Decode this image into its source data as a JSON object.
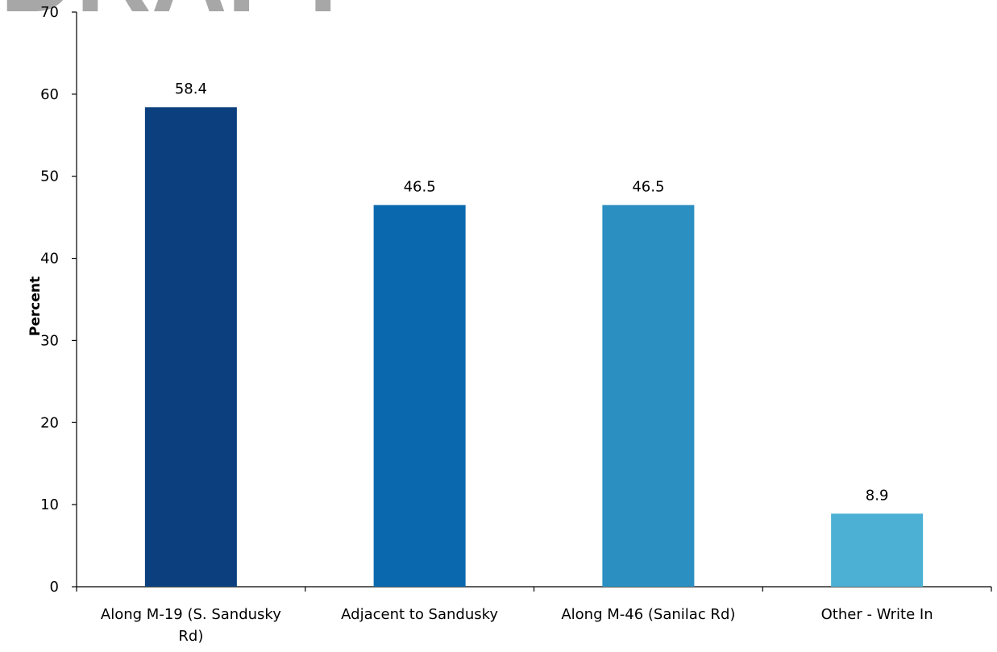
{
  "watermark": "DRAFT",
  "chart_data": {
    "type": "bar",
    "categories": [
      [
        "Along M-19 (S. Sandusky",
        "Rd)"
      ],
      [
        "Adjacent to Sandusky"
      ],
      [
        "Along M-46 (Sanilac Rd)"
      ],
      [
        "Other - Write In"
      ]
    ],
    "values": [
      58.4,
      46.5,
      46.5,
      8.9
    ],
    "value_labels": [
      "58.4",
      "46.5",
      "46.5",
      "8.9"
    ],
    "colors": [
      "#0b3f7e",
      "#0a69ae",
      "#2c8fc1",
      "#4bb0d3"
    ],
    "ylabel": "Percent",
    "xlabel": "",
    "title": "",
    "ylim": [
      0,
      70
    ],
    "yticks": [
      0,
      10,
      20,
      30,
      40,
      50,
      60,
      70
    ],
    "grid": false,
    "legend": "none"
  }
}
